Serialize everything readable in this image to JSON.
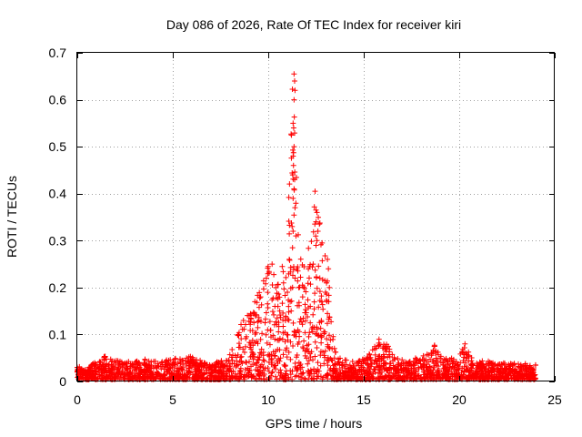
{
  "chart_data": {
    "type": "scatter",
    "title": "Day 086 of 2026, Rate Of TEC Index for receiver kiri",
    "xlabel": "GPS time / hours",
    "ylabel": "ROTI / TECUs",
    "xlim": [
      0,
      25
    ],
    "ylim": [
      0,
      0.7
    ],
    "xticks": [
      0,
      5,
      10,
      15,
      20,
      25
    ],
    "yticks": [
      0,
      0.1,
      0.2,
      0.3,
      0.4,
      0.5,
      0.6,
      0.7
    ],
    "ytick_labels": [
      "0",
      "0.1",
      "0.2",
      "0.3",
      "0.4",
      "0.5",
      "0.6",
      "0.7"
    ],
    "grid": true,
    "marker": "+",
    "color": "#ff0000",
    "series": [
      {
        "name": "ROTI",
        "envelope": [
          {
            "x": 0.0,
            "y": 0.03
          },
          {
            "x": 0.5,
            "y": 0.02
          },
          {
            "x": 1.0,
            "y": 0.045
          },
          {
            "x": 1.5,
            "y": 0.05
          },
          {
            "x": 2.0,
            "y": 0.045
          },
          {
            "x": 2.5,
            "y": 0.04
          },
          {
            "x": 3.0,
            "y": 0.04
          },
          {
            "x": 3.5,
            "y": 0.045
          },
          {
            "x": 4.0,
            "y": 0.04
          },
          {
            "x": 4.5,
            "y": 0.04
          },
          {
            "x": 5.0,
            "y": 0.045
          },
          {
            "x": 5.5,
            "y": 0.045
          },
          {
            "x": 6.0,
            "y": 0.05
          },
          {
            "x": 6.5,
            "y": 0.04
          },
          {
            "x": 7.0,
            "y": 0.035
          },
          {
            "x": 7.5,
            "y": 0.04
          },
          {
            "x": 8.0,
            "y": 0.06
          },
          {
            "x": 8.5,
            "y": 0.12
          },
          {
            "x": 9.0,
            "y": 0.14
          },
          {
            "x": 9.5,
            "y": 0.19
          },
          {
            "x": 10.0,
            "y": 0.25
          },
          {
            "x": 10.5,
            "y": 0.21
          },
          {
            "x": 11.0,
            "y": 0.3
          },
          {
            "x": 11.3,
            "y": 0.66
          },
          {
            "x": 11.6,
            "y": 0.27
          },
          {
            "x": 12.0,
            "y": 0.25
          },
          {
            "x": 12.5,
            "y": 0.41
          },
          {
            "x": 13.0,
            "y": 0.26
          },
          {
            "x": 13.5,
            "y": 0.06
          },
          {
            "x": 14.0,
            "y": 0.045
          },
          {
            "x": 14.5,
            "y": 0.04
          },
          {
            "x": 15.0,
            "y": 0.045
          },
          {
            "x": 15.5,
            "y": 0.07
          },
          {
            "x": 16.0,
            "y": 0.085
          },
          {
            "x": 16.5,
            "y": 0.06
          },
          {
            "x": 17.0,
            "y": 0.045
          },
          {
            "x": 17.5,
            "y": 0.045
          },
          {
            "x": 18.0,
            "y": 0.05
          },
          {
            "x": 18.5,
            "y": 0.06
          },
          {
            "x": 18.7,
            "y": 0.075
          },
          {
            "x": 19.0,
            "y": 0.05
          },
          {
            "x": 19.5,
            "y": 0.045
          },
          {
            "x": 20.0,
            "y": 0.05
          },
          {
            "x": 20.3,
            "y": 0.08
          },
          {
            "x": 20.6,
            "y": 0.05
          },
          {
            "x": 21.0,
            "y": 0.04
          },
          {
            "x": 21.5,
            "y": 0.04
          },
          {
            "x": 22.0,
            "y": 0.035
          },
          {
            "x": 22.5,
            "y": 0.035
          },
          {
            "x": 23.0,
            "y": 0.035
          },
          {
            "x": 23.5,
            "y": 0.035
          },
          {
            "x": 24.0,
            "y": 0.035
          }
        ],
        "spikes": [
          {
            "x": 11.35,
            "y": 0.655
          },
          {
            "x": 11.38,
            "y": 0.64
          },
          {
            "x": 11.4,
            "y": 0.62
          },
          {
            "x": 11.35,
            "y": 0.6
          },
          {
            "x": 11.3,
            "y": 0.55
          },
          {
            "x": 11.33,
            "y": 0.54
          },
          {
            "x": 11.35,
            "y": 0.5
          },
          {
            "x": 11.3,
            "y": 0.48
          },
          {
            "x": 11.32,
            "y": 0.46
          },
          {
            "x": 11.28,
            "y": 0.44
          },
          {
            "x": 11.38,
            "y": 0.43
          },
          {
            "x": 11.35,
            "y": 0.41
          },
          {
            "x": 11.3,
            "y": 0.39
          },
          {
            "x": 11.4,
            "y": 0.37
          },
          {
            "x": 11.25,
            "y": 0.33
          },
          {
            "x": 11.3,
            "y": 0.32
          },
          {
            "x": 11.45,
            "y": 0.31
          },
          {
            "x": 11.1,
            "y": 0.26
          },
          {
            "x": 11.5,
            "y": 0.24
          },
          {
            "x": 11.4,
            "y": 0.22
          },
          {
            "x": 11.6,
            "y": 0.2
          },
          {
            "x": 12.45,
            "y": 0.405
          },
          {
            "x": 12.5,
            "y": 0.365
          },
          {
            "x": 12.55,
            "y": 0.36
          },
          {
            "x": 12.5,
            "y": 0.34
          },
          {
            "x": 12.6,
            "y": 0.32
          },
          {
            "x": 12.55,
            "y": 0.3
          },
          {
            "x": 12.5,
            "y": 0.29
          },
          {
            "x": 12.35,
            "y": 0.25
          },
          {
            "x": 12.1,
            "y": 0.24
          },
          {
            "x": 12.7,
            "y": 0.22
          },
          {
            "x": 13.1,
            "y": 0.26
          },
          {
            "x": 13.15,
            "y": 0.24
          },
          {
            "x": 13.05,
            "y": 0.21
          },
          {
            "x": 13.2,
            "y": 0.2
          },
          {
            "x": 13.0,
            "y": 0.19
          },
          {
            "x": 10.2,
            "y": 0.25
          },
          {
            "x": 9.9,
            "y": 0.22
          },
          {
            "x": 10.4,
            "y": 0.2
          },
          {
            "x": 10.8,
            "y": 0.21
          },
          {
            "x": 11.0,
            "y": 0.19
          },
          {
            "x": 9.6,
            "y": 0.18
          },
          {
            "x": 9.3,
            "y": 0.17
          },
          {
            "x": 9.0,
            "y": 0.14
          },
          {
            "x": 8.7,
            "y": 0.13
          },
          {
            "x": 10.6,
            "y": 0.15
          },
          {
            "x": 12.8,
            "y": 0.17
          },
          {
            "x": 12.2,
            "y": 0.16
          },
          {
            "x": 11.8,
            "y": 0.18
          },
          {
            "x": 11.2,
            "y": 0.15
          },
          {
            "x": 10.9,
            "y": 0.13
          },
          {
            "x": 15.8,
            "y": 0.09
          },
          {
            "x": 18.7,
            "y": 0.075
          },
          {
            "x": 20.3,
            "y": 0.08
          },
          {
            "x": 0.0,
            "y": 0.03
          },
          {
            "x": 0.0,
            "y": 0.02
          }
        ]
      }
    ]
  }
}
